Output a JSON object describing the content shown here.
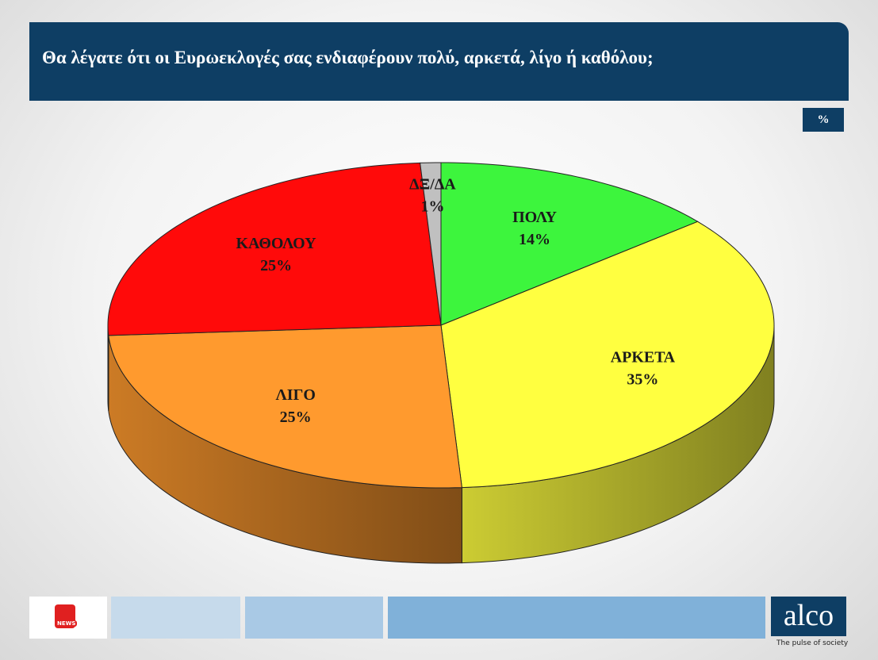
{
  "chart_data": {
    "type": "pie",
    "title": "Θα λέγατε ότι οι Ευρωεκλογές σας ενδιαφέρουν πολύ, αρκετά, λίγο ή καθόλου;",
    "unit": "%",
    "categories": [
      "ΠΟΛΥ",
      "ΑΡΚΕΤΑ",
      "ΛΙΓΟ",
      "ΚΑΘΟΛΟΥ",
      "ΔΞ/ΔΑ"
    ],
    "values": [
      14,
      35,
      25,
      25,
      1
    ],
    "value_labels": [
      "14%",
      "35%",
      "25%",
      "25%",
      "1%"
    ],
    "colors": [
      "#3df53d",
      "#ffff40",
      "#ff9a2e",
      "#ff0a0a",
      "#c0c0c0"
    ]
  },
  "footer": {
    "partner": "NEWS",
    "brand": "alco",
    "tagline": "The pulse of society"
  }
}
